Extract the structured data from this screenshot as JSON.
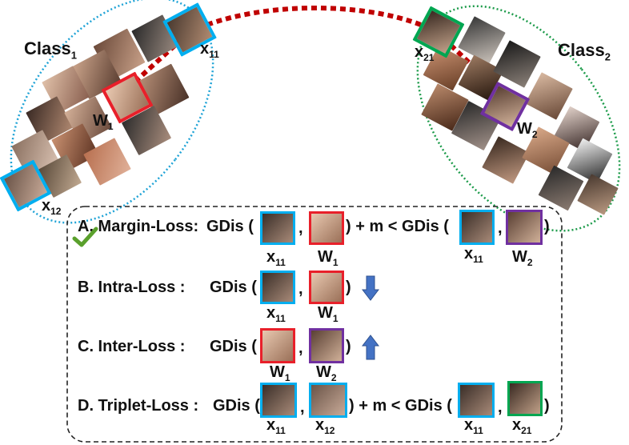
{
  "classes": {
    "class1": {
      "label": "Class",
      "sub": "1"
    },
    "class2": {
      "label": "Class",
      "sub": "2"
    }
  },
  "symbols": {
    "x11": {
      "base": "x",
      "sub": "11"
    },
    "x12": {
      "base": "x",
      "sub": "12"
    },
    "x21": {
      "base": "x",
      "sub": "21"
    },
    "w1": {
      "base": "W",
      "sub": "1"
    },
    "w2": {
      "base": "W",
      "sub": "2"
    }
  },
  "losses": {
    "a": {
      "name": "A. Margin-Loss:",
      "gdis": "GDis",
      "comma": ",",
      "plus": ") + m < GDis (",
      "close": ")"
    },
    "b": {
      "name": "B. Intra-Loss :",
      "gdis": "GDis",
      "comma": ",",
      "close": ")",
      "arrow": "down"
    },
    "c": {
      "name": "C. Inter-Loss :",
      "gdis": "GDis",
      "comma": ",",
      "close": ")",
      "arrow": "up"
    },
    "d": {
      "name": "D. Triplet-Loss :",
      "gdis": "GDis",
      "comma": ",",
      "plus": ") + m < GDis (",
      "close": ")"
    }
  },
  "colors": {
    "x11_border": "#00aeef",
    "w1_border": "#e8202a",
    "w2_border": "#7030a0",
    "x21_border": "#00a651",
    "class1_ellipse": "#1fa3d6",
    "class2_ellipse": "#1c9b4a",
    "connector": "#c00000",
    "arrow": "#4472c4"
  }
}
